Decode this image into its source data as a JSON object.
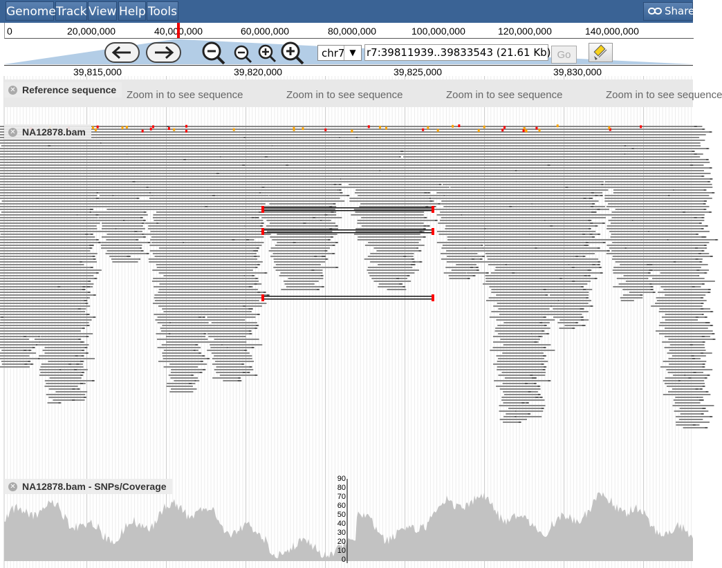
{
  "menubar": {
    "items": [
      "Genome",
      "Track",
      "View",
      "Help",
      "Tools"
    ],
    "share_label": "Share"
  },
  "overview": {
    "ticks": [
      "0",
      "20,000,000",
      "40,000,000",
      "60,000,000",
      "80,000,000",
      "100,000,000",
      "120,000,000",
      "140,000,000"
    ]
  },
  "navigation": {
    "chromosome": "chr7",
    "location": "r7:39811939..39833543 (21.61 Kb)",
    "go_label": "Go"
  },
  "ruler": {
    "ticks": [
      "39,815,000",
      "39,820,000",
      "39,825,000",
      "39,830,000"
    ]
  },
  "tracks": {
    "reference": {
      "label": "Reference sequence",
      "zoom_message": "Zoom in to see sequence"
    },
    "alignments": {
      "label": "NA12878.bam"
    },
    "coverage": {
      "label": "NA12878.bam - SNPs/Coverage",
      "y_ticks": [
        "90",
        "80",
        "70",
        "60",
        "50",
        "40",
        "30",
        "20",
        "10",
        "0"
      ]
    }
  },
  "colors": {
    "menubar": "#3a6395",
    "read": "#888888",
    "mismatch": "#ff0000",
    "snp_highlight": "#ffa500",
    "coverage": "#c2c2c2",
    "reference_bg": "#e8e8e8"
  }
}
